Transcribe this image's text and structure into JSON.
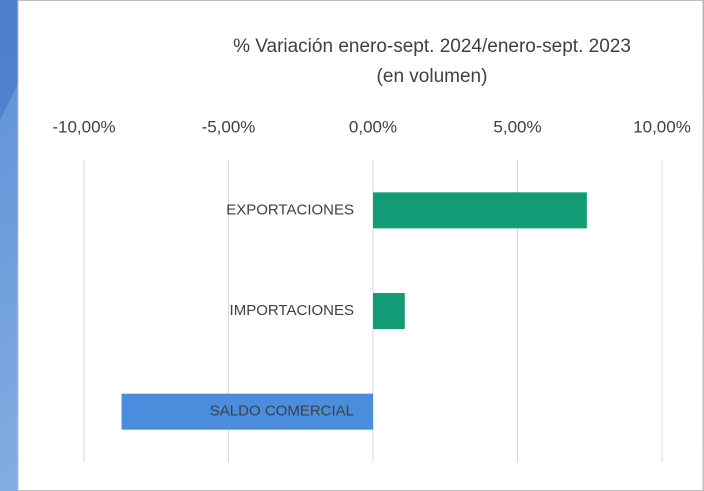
{
  "chart_data": {
    "type": "hbar",
    "title": "% Variación enero-sept. 2024/enero-sept. 2023",
    "subtitle": "(en volumen)",
    "categories": [
      "EXPORTACIONES",
      "IMPORTACIONES",
      "SALDO COMERCIAL"
    ],
    "values": [
      7.4,
      1.1,
      -8.7
    ],
    "colors": [
      "#129b74",
      "#129b74",
      "#4a8ddd"
    ],
    "xlim": [
      -10,
      10
    ],
    "xticks": [
      {
        "value": -10,
        "label": "-10,00%"
      },
      {
        "value": -5,
        "label": "-5,00%"
      },
      {
        "value": 0,
        "label": "0,00%"
      },
      {
        "value": 5,
        "label": "5,00%"
      },
      {
        "value": 10,
        "label": "10,00%"
      }
    ],
    "grid": true
  }
}
